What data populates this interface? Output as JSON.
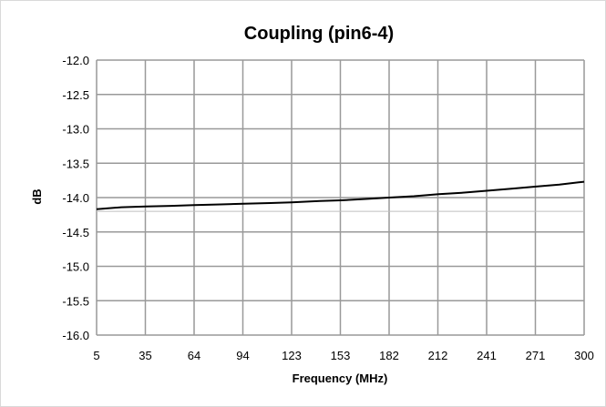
{
  "chart_data": {
    "type": "line",
    "title": "Coupling (pin6-4)",
    "xlabel": "Frequency (MHz)",
    "ylabel": "dB",
    "x_ticks": [
      "5",
      "35",
      "64",
      "94",
      "123",
      "153",
      "182",
      "212",
      "241",
      "271",
      "300"
    ],
    "y_ticks": [
      "-12.0",
      "-12.5",
      "-13.0",
      "-13.5",
      "-14.0",
      "-14.5",
      "-15.0",
      "-15.5",
      "-16.0"
    ],
    "xlim": [
      5,
      300
    ],
    "ylim": [
      -16.0,
      -12.0
    ],
    "grid": true,
    "legend": "none",
    "line_color": "#000000",
    "grid_color": "#999999",
    "series": [
      {
        "x": [
          5,
          20,
          35,
          50,
          64,
          80,
          94,
          110,
          123,
          140,
          153,
          168,
          182,
          197,
          212,
          226,
          241,
          256,
          271,
          285,
          300
        ],
        "values": [
          -14.17,
          -14.14,
          -14.13,
          -14.12,
          -14.11,
          -14.1,
          -14.09,
          -14.08,
          -14.07,
          -14.05,
          -14.04,
          -14.02,
          -14.0,
          -13.98,
          -13.95,
          -13.93,
          -13.9,
          -13.87,
          -13.84,
          -13.81,
          -13.77
        ]
      }
    ]
  }
}
